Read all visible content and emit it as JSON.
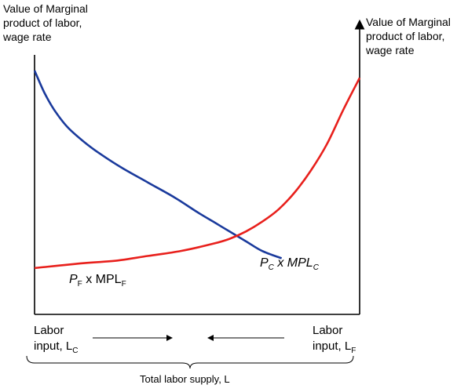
{
  "chart_data": {
    "type": "line",
    "title": "",
    "ylabel_left": "Value of Marginal\nproduct of labor,\nwage rate",
    "ylabel_right": "Value of Marginal\nproduct of labor,\nwage rate",
    "xlabel": "Total labor supply, L",
    "left_end_label": {
      "line1": "Labor",
      "line2": "input, L",
      "sub": "C"
    },
    "right_end_label": {
      "line1": "Labor",
      "line2": "input, L",
      "sub": "F"
    },
    "series": [
      {
        "name": "P_C x MPL_C",
        "label_main": "P",
        "label_sub1": "C",
        "label_mid": " x MPL",
        "label_sub2": "C",
        "color": "#1a3a9c",
        "measured_from": "left",
        "x": [
          0,
          0.03,
          0.06,
          0.1,
          0.15,
          0.2,
          0.27,
          0.35,
          0.43,
          0.5,
          0.55,
          0.6,
          0.65,
          0.7,
          0.76
        ],
        "y": [
          1.0,
          0.91,
          0.84,
          0.77,
          0.71,
          0.66,
          0.6,
          0.54,
          0.48,
          0.42,
          0.38,
          0.34,
          0.3,
          0.26,
          0.23
        ]
      },
      {
        "name": "P_F x MPL_F",
        "label_main": "P",
        "label_sub1": "F",
        "label_mid": " x MPL",
        "label_sub2": "F",
        "color": "#e8201c",
        "measured_from": "right",
        "x": [
          1.0,
          0.85,
          0.75,
          0.65,
          0.55,
          0.45,
          0.4,
          0.35,
          0.3,
          0.25,
          0.2,
          0.15,
          0.1,
          0.05,
          0.0
        ],
        "y": [
          0.19,
          0.21,
          0.22,
          0.24,
          0.26,
          0.29,
          0.31,
          0.34,
          0.38,
          0.43,
          0.5,
          0.59,
          0.7,
          0.84,
          0.97
        ]
      }
    ],
    "xlim": [
      0,
      1
    ],
    "ylim": [
      0,
      1
    ],
    "grid": false,
    "legend": "none"
  }
}
